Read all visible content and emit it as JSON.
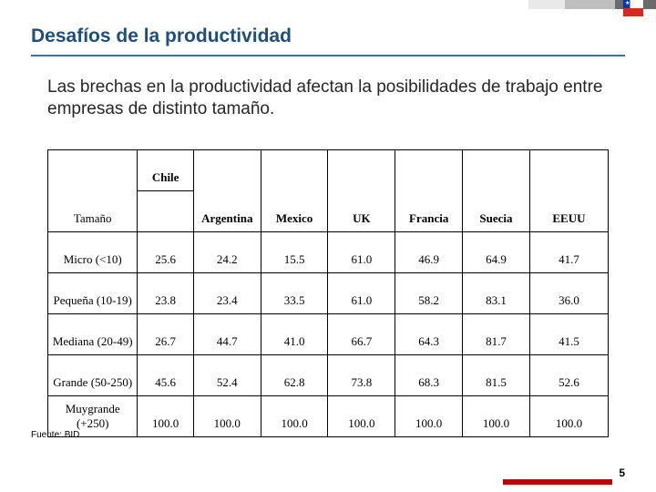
{
  "colors": {
    "title_text": "#1f4e79",
    "title_underline": "#2e75b6",
    "body_text": "#262626",
    "accent_bar": "#c00000",
    "flag_blue": "#0039a6",
    "flag_white": "#ffffff",
    "flag_red": "#d52b1e",
    "stripe1": "#e9e9e9",
    "stripe2": "#bfbfbf",
    "stripe3": "#6b6b6b"
  },
  "title": "Desafíos de la productividad",
  "body": "Las brechas en la productividad afectan la posibilidades de trabajo entre empresas de distinto tamaño.",
  "table": {
    "corner_top": "",
    "chile_header": "Chile",
    "corner_label": "Tamaño",
    "columns": [
      "Argentina",
      "Mexico",
      "UK",
      "Francia",
      "Suecia",
      "EEUU"
    ],
    "col_widths": [
      "16%",
      "10%",
      "12%",
      "12%",
      "12%",
      "12%",
      "12%",
      "14%"
    ],
    "rows": [
      {
        "label": "Micro (<10)",
        "cells": [
          "25.6",
          "24.2",
          "15.5",
          "61.0",
          "46.9",
          "64.9",
          "41.7"
        ]
      },
      {
        "label": "Pequeña (10-19)",
        "cells": [
          "23.8",
          "23.4",
          "33.5",
          "61.0",
          "58.2",
          "83.1",
          "36.0"
        ]
      },
      {
        "label": "Mediana (20-49)",
        "cells": [
          "26.7",
          "44.7",
          "41.0",
          "66.7",
          "64.3",
          "81.7",
          "41.5"
        ]
      },
      {
        "label": "Grande (50-250)",
        "cells": [
          "45.6",
          "52.4",
          "62.8",
          "73.8",
          "68.3",
          "81.5",
          "52.6"
        ]
      },
      {
        "label": "Muygrande (+250)",
        "cells": [
          "100.0",
          "100.0",
          "100.0",
          "100.0",
          "100.0",
          "100.0",
          "100.0"
        ]
      }
    ]
  },
  "source": "Fuente: BID",
  "page_number": "5"
}
